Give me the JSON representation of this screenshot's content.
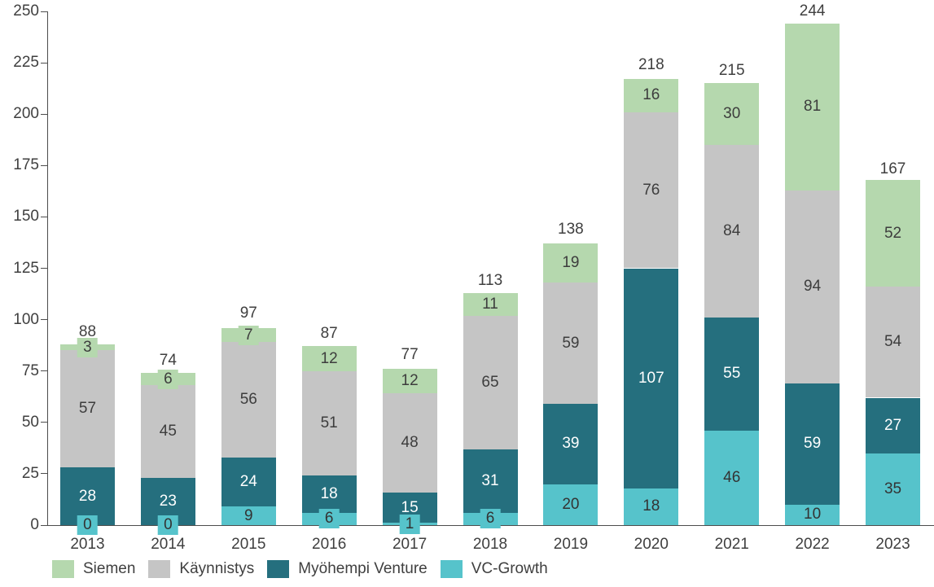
{
  "chart_data": {
    "type": "bar",
    "stacked": true,
    "title": "",
    "xlabel": "",
    "ylabel": "",
    "ylim": [
      0,
      250
    ],
    "yticks": [
      0,
      25,
      50,
      75,
      100,
      125,
      150,
      175,
      200,
      225,
      250
    ],
    "grid": false,
    "legend_position": "bottom",
    "categories": [
      "2013",
      "2014",
      "2015",
      "2016",
      "2017",
      "2018",
      "2019",
      "2020",
      "2021",
      "2022",
      "2023"
    ],
    "series": [
      {
        "name": "Siemen",
        "color": "#b5d8ae",
        "label_color": "#3d3d3d",
        "values": [
          3,
          6,
          7,
          12,
          12,
          11,
          19,
          16,
          30,
          81,
          52
        ]
      },
      {
        "name": "Käynnistys",
        "color": "#c5c5c5",
        "label_color": "#3d3d3d",
        "values": [
          57,
          45,
          56,
          51,
          48,
          65,
          59,
          76,
          84,
          94,
          54
        ]
      },
      {
        "name": "Myöhempi Venture",
        "color": "#256f7e",
        "label_color": "#ffffff",
        "values": [
          28,
          23,
          24,
          18,
          15,
          31,
          39,
          107,
          55,
          59,
          27
        ]
      },
      {
        "name": "VC-Growth",
        "color": "#56c3cb",
        "label_color": "#333333",
        "values": [
          0,
          0,
          9,
          6,
          1,
          6,
          20,
          18,
          46,
          10,
          35
        ]
      }
    ],
    "stack_order_bottom_to_top": [
      "VC-Growth",
      "Myöhempi Venture",
      "Käynnistys",
      "Siemen"
    ],
    "totals": [
      88,
      74,
      97,
      87,
      77,
      113,
      138,
      218,
      215,
      244,
      167
    ],
    "axis_color": "#4d4d4d",
    "tick_label_color": "#3f3f3f"
  }
}
